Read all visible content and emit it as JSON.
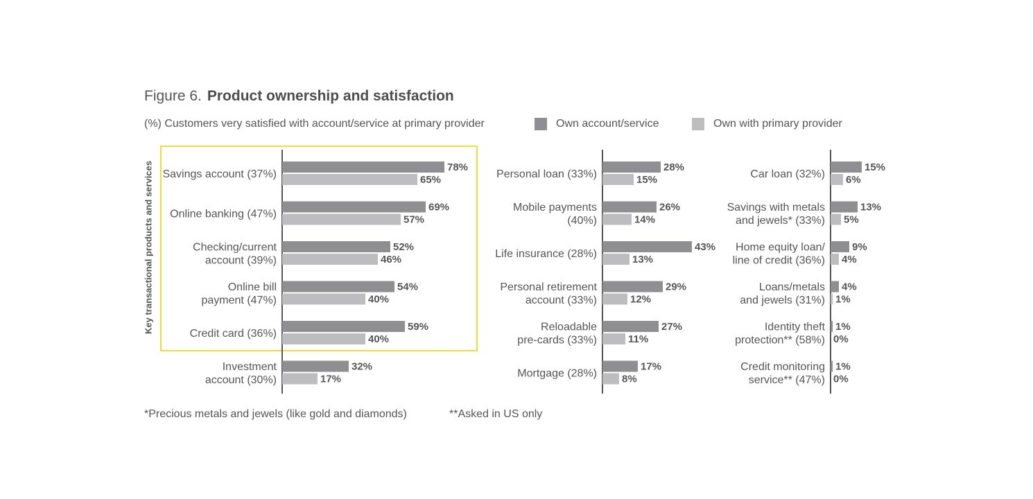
{
  "figure": {
    "number_label": "Figure 6.",
    "title": "Product ownership and satisfaction",
    "subtitle": "(%) Customers very satisfied with account/service at primary provider",
    "axis_label": "Key transactional products and services",
    "footnotes": [
      "*Precious metals and jewels (like gold and diamonds)",
      "**Asked in US only"
    ]
  },
  "colors": {
    "own": "#8f8f92",
    "primary": "#bdbdc0",
    "highlight": "#f5dc3c",
    "axis": "#555555"
  },
  "chart_data": {
    "type": "bar",
    "orientation": "horizontal",
    "legend": {
      "own": "Own account/service",
      "primary": "Own with primary provider"
    },
    "panels": [
      {
        "categories": [
          [
            "Savings account (37%)"
          ],
          [
            "Online banking (47%)"
          ],
          [
            "Checking/current",
            "account (39%)"
          ],
          [
            "Online bill",
            "payment (47%)"
          ],
          [
            "Credit card (36%)"
          ],
          [
            "Investment",
            "account (30%)"
          ]
        ],
        "own": [
          78,
          69,
          52,
          54,
          59,
          32
        ],
        "primary": [
          65,
          57,
          46,
          40,
          40,
          17
        ],
        "own_labels": [
          "78%",
          "69%",
          "52%",
          "54%",
          "59%",
          "32%"
        ],
        "primary_labels": [
          "65%",
          "57%",
          "46%",
          "40%",
          "40%",
          "17%"
        ]
      },
      {
        "categories": [
          [
            "Personal loan (33%)"
          ],
          [
            "Mobile  payments",
            "(40%)"
          ],
          [
            "Life insurance (28%)"
          ],
          [
            "Personal retirement",
            "account (33%)"
          ],
          [
            "Reloadable",
            "pre-cards (33%)"
          ],
          [
            "Mortgage (28%)"
          ]
        ],
        "own": [
          28,
          26,
          43,
          29,
          27,
          17
        ],
        "primary": [
          15,
          14,
          13,
          12,
          11,
          8
        ],
        "own_labels": [
          "28%",
          "26%",
          "43%",
          "29%",
          "27%",
          "17%"
        ],
        "primary_labels": [
          "15%",
          "14%",
          "13%",
          "12%",
          "11%",
          "8%"
        ]
      },
      {
        "categories": [
          [
            "Car loan (32%)"
          ],
          [
            "Savings with metals",
            "and jewels* (33%)"
          ],
          [
            "Home equity loan/",
            "line of credit (36%)"
          ],
          [
            "Loans/metals",
            "and jewels (31%)"
          ],
          [
            "Identity theft",
            "protection** (58%)"
          ],
          [
            "Credit monitoring",
            "service** (47%)"
          ]
        ],
        "own": [
          15,
          13,
          9,
          4,
          1,
          1
        ],
        "primary": [
          6,
          5,
          4,
          1,
          0,
          0
        ],
        "own_labels": [
          "15%",
          "13%",
          "9%",
          "4%",
          "1%",
          "1%"
        ],
        "primary_labels": [
          "6%",
          "5%",
          "4%",
          "1%",
          "0%",
          "0%"
        ]
      }
    ]
  }
}
